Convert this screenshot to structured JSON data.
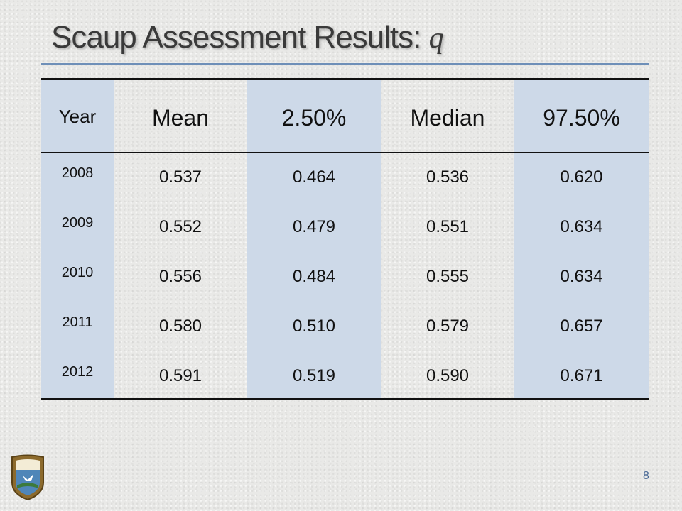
{
  "slide": {
    "title_main": "Scaup Assessment Results: ",
    "title_var": "q",
    "page_number": "8",
    "logo_name": "usfws-shield-icon"
  },
  "table": {
    "headers": [
      "Year",
      "Mean",
      "2.50%",
      "Median",
      "97.50%"
    ],
    "rows": [
      [
        "2008",
        "0.537",
        "0.464",
        "0.536",
        "0.620"
      ],
      [
        "2009",
        "0.552",
        "0.479",
        "0.551",
        "0.634"
      ],
      [
        "2010",
        "0.556",
        "0.484",
        "0.555",
        "0.634"
      ],
      [
        "2011",
        "0.580",
        "0.510",
        "0.579",
        "0.657"
      ],
      [
        "2012",
        "0.591",
        "0.519",
        "0.590",
        "0.671"
      ]
    ]
  },
  "colors": {
    "band": "#cdd9e8",
    "title_rule": "#6e8fb8",
    "page_number": "#4a6a96"
  }
}
